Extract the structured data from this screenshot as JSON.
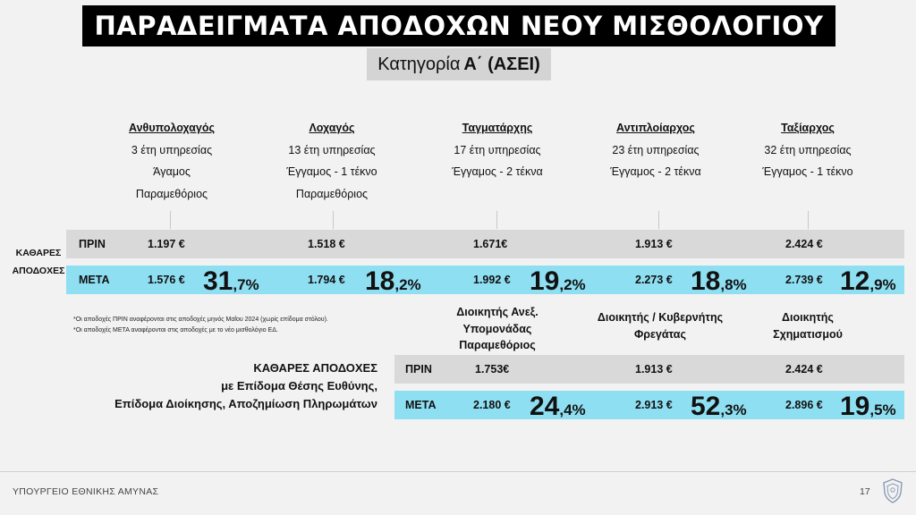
{
  "title": "ΠΑΡΑΔΕΙΓΜΑΤΑ ΑΠΟΔΟΧΩΝ ΝΕΟΥ ΜΙΣΘΟΛΟΓΙΟΥ",
  "subtitle": {
    "prefix": "Κατηγορία",
    "suffix": "Α΄ (ΑΣΕΙ)"
  },
  "side_label": {
    "line1": "ΚΑΘΑΡΕΣ",
    "line2": "ΑΠΟΔΟΧΕΣ"
  },
  "labels": {
    "before": "ΠΡΙΝ",
    "after": "ΜΕΤΑ"
  },
  "ranks": [
    {
      "name": "Ανθυπολοχαγός",
      "years": "3 έτη υπηρεσίας",
      "family": "Άγαμος",
      "extra": "Παραμεθόριος",
      "before": "1.197 €",
      "after": "1.576 €",
      "pct_int": "31",
      "pct_dec": ",7%"
    },
    {
      "name": "Λοχαγός",
      "years": "13 έτη υπηρεσίας",
      "family": "Έγγαμος - 1 τέκνο",
      "extra": "Παραμεθόριος",
      "before": "1.518 €",
      "after": "1.794 €",
      "pct_int": "18",
      "pct_dec": ",2%"
    },
    {
      "name": "Ταγματάρχης",
      "years": "17 έτη υπηρεσίας",
      "family": "Έγγαμος - 2 τέκνα",
      "extra": "",
      "before": "1.671€",
      "after": "1.992 €",
      "pct_int": "19",
      "pct_dec": ",2%"
    },
    {
      "name": "Αντιπλοίαρχος",
      "years": "23 έτη υπηρεσίας",
      "family": "Έγγαμος - 2 τέκνα",
      "extra": "",
      "before": "1.913 €",
      "after": "2.273 €",
      "pct_int": "18",
      "pct_dec": ",8%"
    },
    {
      "name": "Ταξίαρχος",
      "years": "32 έτη υπηρεσίας",
      "family": "Έγγαμος - 1 τέκνο",
      "extra": "",
      "before": "2.424 €",
      "after": "2.739 €",
      "pct_int": "12",
      "pct_dec": ",9%"
    }
  ],
  "notes": [
    "*Οι αποδοχές ΠΡΙΝ αναφέρονται στις αποδοχές μηνός Μαΐου 2024 (χωρίς επίδομα στόλου).",
    "*Οι αποδοχές ΜΕΤΑ αναφέρονται στις αποδοχές με το νέο μισθολόγιο ΕΔ."
  ],
  "net_with_allowance": {
    "line1": "ΚΑΘΑΡΕΣ ΑΠΟΔΟΧΕΣ",
    "line2": "με Επίδομα Θέσης Ευθύνης,",
    "line3": "Επίδομα Διοίκησης, Αποζημίωση Πληρωμάτων"
  },
  "commands": [
    {
      "line1": "Διοικητής Ανεξ.",
      "line2": "Υπομονάδας",
      "line3": "Παραμεθόριος",
      "before": "1.753€",
      "after": "2.180 €",
      "pct_int": "24",
      "pct_dec": ",4%"
    },
    {
      "line1": "Διοικητής / Κυβερνήτης",
      "line2": "Φρεγάτας",
      "line3": "",
      "before": "1.913 €",
      "after": "2.913 €",
      "pct_int": "52",
      "pct_dec": ",3%"
    },
    {
      "line1": "Διοικητής",
      "line2": "Σχηματισμού",
      "line3": "",
      "before": "2.424 €",
      "after": "2.896 €",
      "pct_int": "19",
      "pct_dec": ",5%"
    }
  ],
  "footer": "ΥΠΟΥΡΓΕΙΟ ΕΘΝΙΚΗΣ ΑΜΥΝΑΣ",
  "page_number": "17",
  "colors": {
    "before_row": "#d9d9d9",
    "after_row": "#8fdff2",
    "title_bg": "#000000"
  }
}
